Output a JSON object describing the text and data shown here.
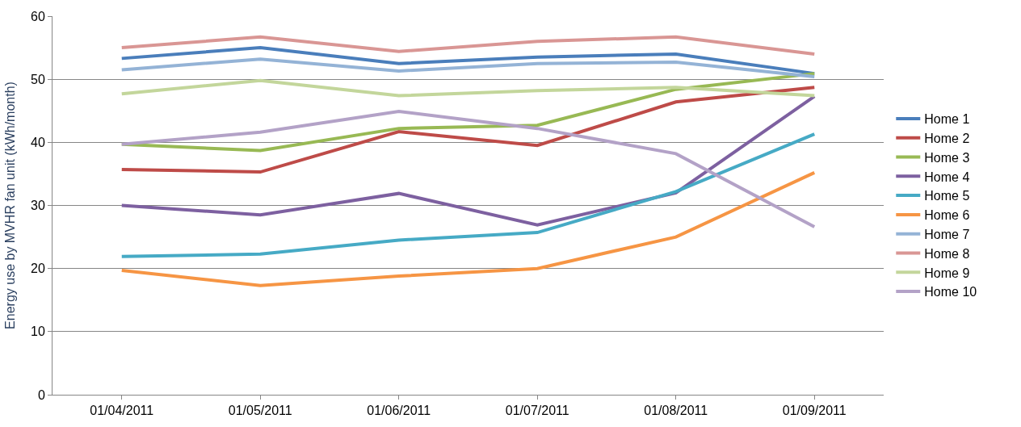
{
  "chart_data": {
    "type": "line",
    "ylabel": "Energy use by MVHR fan unit (kWh/month)",
    "categories": [
      "01/04/2011",
      "01/05/2011",
      "01/06/2011",
      "01/07/2011",
      "01/08/2011",
      "01/09/2011"
    ],
    "series": [
      {
        "name": "Home 1",
        "color": "#4a7ebb",
        "values": [
          53.3,
          55.0,
          52.5,
          53.5,
          54.0,
          50.9
        ]
      },
      {
        "name": "Home 2",
        "color": "#be4b48",
        "values": [
          35.7,
          35.3,
          41.7,
          39.5,
          46.4,
          48.7
        ]
      },
      {
        "name": "Home 3",
        "color": "#98b954",
        "values": [
          39.7,
          38.7,
          42.2,
          42.7,
          48.4,
          50.9
        ]
      },
      {
        "name": "Home 4",
        "color": "#7d60a0",
        "values": [
          30.0,
          28.5,
          31.9,
          26.9,
          32.0,
          47.3
        ]
      },
      {
        "name": "Home 5",
        "color": "#46aac5",
        "values": [
          21.9,
          22.3,
          24.5,
          25.7,
          32.2,
          41.3
        ]
      },
      {
        "name": "Home 6",
        "color": "#f69544",
        "values": [
          19.7,
          17.3,
          18.8,
          20.0,
          25.0,
          35.2
        ]
      },
      {
        "name": "Home 7",
        "color": "#94b3d6",
        "values": [
          51.5,
          53.2,
          51.3,
          52.5,
          52.7,
          50.4
        ]
      },
      {
        "name": "Home 8",
        "color": "#d99694",
        "values": [
          55.0,
          56.7,
          54.4,
          56.0,
          56.7,
          54.0
        ]
      },
      {
        "name": "Home 9",
        "color": "#c3d69b",
        "values": [
          47.7,
          49.8,
          47.4,
          48.2,
          48.7,
          47.4
        ]
      },
      {
        "name": "Home 10",
        "color": "#b3a2c7",
        "values": [
          39.7,
          41.6,
          44.9,
          42.2,
          38.2,
          26.6
        ]
      }
    ],
    "ylim": [
      0,
      60
    ],
    "yticks": [
      0,
      10,
      20,
      30,
      40,
      50,
      60
    ],
    "grid": "y",
    "legend": "right",
    "marker": "none",
    "line_style": "solid"
  }
}
